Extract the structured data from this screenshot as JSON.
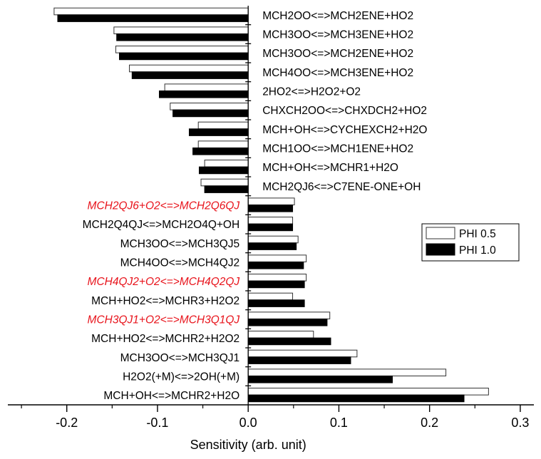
{
  "chart_data": {
    "type": "bar",
    "orientation": "horizontal",
    "xlabel": "Sensitivity (arb. unit)",
    "ylabel": "",
    "title": "",
    "xlim": [
      -0.265,
      0.315
    ],
    "xticks": [
      -0.2,
      -0.1,
      0.0,
      0.1,
      0.2,
      0.3
    ],
    "xtick_labels": [
      "-0.2",
      "-0.1",
      "0.0",
      "0.1",
      "0.2",
      "0.3"
    ],
    "grid": false,
    "legend_position": "center-right",
    "categories": [
      "MCH2OO<=>MCH2ENE+HO2",
      "MCH3OO<=>MCH3ENE+HO2",
      "MCH3OO<=>MCH2ENE+HO2",
      "MCH4OO<=>MCH3ENE+HO2",
      "2HO2<=>H2O2+O2",
      "CHXCH2OO<=>CHXDCH2+HO2",
      "MCH+OH<=>CYCHEXCH2+H2O",
      "MCH1OO<=>MCH1ENE+HO2",
      "MCH+OH<=>MCHR1+H2O",
      "MCH2QJ6<=>C7ENE-ONE+OH",
      "MCH2QJ6+O2<=>MCH2Q6QJ",
      "MCH2Q4QJ<=>MCH2O4Q+OH",
      "MCH3OO<=>MCH3QJ5",
      "MCH4OO<=>MCH4QJ2",
      "MCH4QJ2+O2<=>MCH4Q2QJ",
      "MCH+HO2<=>MCHR3+H2O2",
      "MCH3QJ1+O2<=>MCH3Q1QJ",
      "MCH+HO2<=>MCHR2+H2O2",
      "MCH3OO<=>MCH3QJ1",
      "H2O2(+M)<=>2OH(+M)",
      "MCH+OH<=>MCHR2+H2O"
    ],
    "highlighted_categories": [
      "MCH2QJ6+O2<=>MCH2Q6QJ",
      "MCH4QJ2+O2<=>MCH4Q2QJ",
      "MCH3QJ1+O2<=>MCH3Q1QJ"
    ],
    "highlight_color": "#e8141c",
    "series": [
      {
        "name": "PHI 0.5",
        "fill": "#ffffff",
        "stroke": "#333333",
        "values": [
          -0.214,
          -0.148,
          -0.146,
          -0.131,
          -0.092,
          -0.086,
          -0.055,
          -0.055,
          -0.048,
          -0.052,
          0.051,
          0.049,
          0.055,
          0.064,
          0.064,
          0.049,
          0.09,
          0.072,
          0.12,
          0.218,
          0.265
        ]
      },
      {
        "name": "PHI 1.0",
        "fill": "#000000",
        "stroke": "#000000",
        "values": [
          -0.21,
          -0.145,
          -0.142,
          -0.128,
          -0.098,
          -0.083,
          -0.065,
          -0.061,
          -0.054,
          -0.048,
          0.049,
          0.049,
          0.053,
          0.061,
          0.062,
          0.062,
          0.087,
          0.091,
          0.113,
          0.159,
          0.238
        ]
      }
    ]
  }
}
